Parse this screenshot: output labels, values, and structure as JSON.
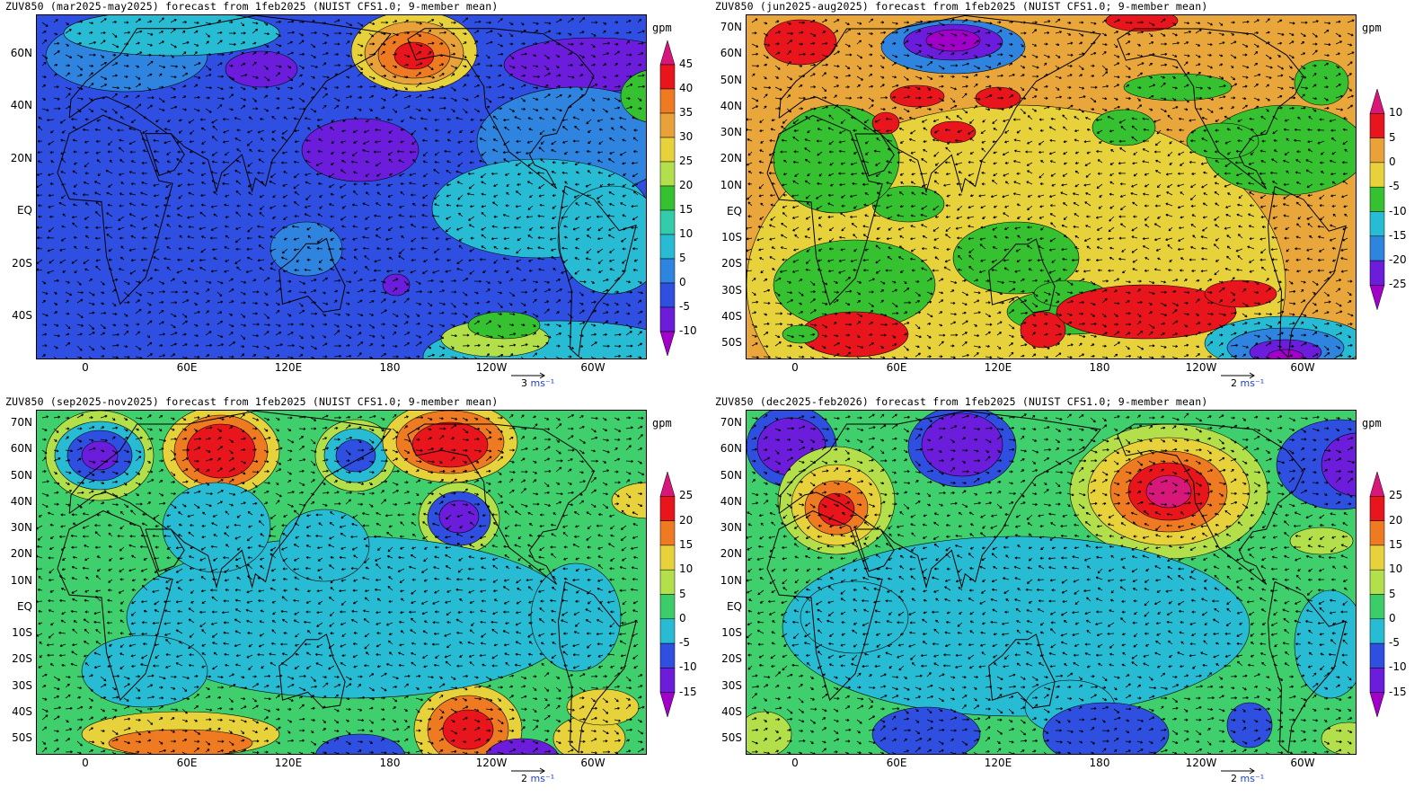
{
  "panels": [
    {
      "id": "mam",
      "title": "ZUV850 (mar2025-may2025) forecast from 1feb2025 (NUIST CFS1.0; 9-member mean)",
      "lat_labels": [
        "60N",
        "40N",
        "20N",
        "EQ",
        "20S",
        "40S"
      ],
      "lat_values": [
        60,
        40,
        20,
        0,
        -20,
        -40
      ],
      "lon_labels": [
        "0",
        "60E",
        "120E",
        "180",
        "120W",
        "60W"
      ],
      "unit": "gpm",
      "levels": [
        "45",
        "40",
        "35",
        "30",
        "25",
        "20",
        "15",
        "10",
        "5",
        "0",
        "-5",
        "-10"
      ],
      "colors": [
        "#d8177a",
        "#e8151c",
        "#ee7a22",
        "#e9a23a",
        "#e8d23c",
        "#b3e04a",
        "#36c230",
        "#33ccaa",
        "#27bcd4",
        "#2f84e0",
        "#2e4fe0",
        "#6b1ddb",
        "#a000c8"
      ],
      "background": "#2f4fe2",
      "ref_vector": "3",
      "ref_unit": "ms⁻¹"
    },
    {
      "id": "jja",
      "title": "ZUV850 (jun2025-aug2025) forecast from 1feb2025 (NUIST CFS1.0; 9-member mean)",
      "lat_labels": [
        "70N",
        "60N",
        "50N",
        "40N",
        "30N",
        "20N",
        "10N",
        "EQ",
        "10S",
        "20S",
        "30S",
        "40S",
        "50S"
      ],
      "lat_values": [
        70,
        60,
        50,
        40,
        30,
        20,
        10,
        0,
        -10,
        -20,
        -30,
        -40,
        -50
      ],
      "lon_labels": [
        "0",
        "60E",
        "120E",
        "180",
        "120W",
        "60W"
      ],
      "unit": "gpm",
      "levels": [
        "10",
        "5",
        "0",
        "-5",
        "-10",
        "-15",
        "-20",
        "-25"
      ],
      "colors": [
        "#d8177a",
        "#e8151c",
        "#e9a23a",
        "#e8d23c",
        "#36c230",
        "#27bcd4",
        "#2f84e0",
        "#6b1ddb",
        "#a000c8"
      ],
      "background": "#e9a63a",
      "ref_vector": "2",
      "ref_unit": "ms⁻¹"
    },
    {
      "id": "son",
      "title": "ZUV850 (sep2025-nov2025) forecast from 1feb2025 (NUIST CFS1.0; 9-member mean)",
      "lat_labels": [
        "70N",
        "60N",
        "50N",
        "40N",
        "30N",
        "20N",
        "10N",
        "EQ",
        "10S",
        "20S",
        "30S",
        "40S",
        "50S"
      ],
      "lat_values": [
        70,
        60,
        50,
        40,
        30,
        20,
        10,
        0,
        -10,
        -20,
        -30,
        -40,
        -50
      ],
      "lon_labels": [
        "0",
        "60E",
        "120E",
        "180",
        "120W",
        "60W"
      ],
      "unit": "gpm",
      "levels": [
        "25",
        "20",
        "15",
        "10",
        "5",
        "0",
        "-5",
        "-10",
        "-15"
      ],
      "colors": [
        "#d8177a",
        "#e8151c",
        "#ee7a22",
        "#e8d23c",
        "#b3e04a",
        "#3ccc6a",
        "#27bcd4",
        "#2f4fe0",
        "#6b1ddb",
        "#a000c8"
      ],
      "background": "#3fcf6c",
      "ref_vector": "2",
      "ref_unit": "ms⁻¹"
    },
    {
      "id": "djf",
      "title": "ZUV850 (dec2025-feb2026) forecast from 1feb2025 (NUIST CFS1.0; 9-member mean)",
      "lat_labels": [
        "70N",
        "60N",
        "50N",
        "40N",
        "30N",
        "20N",
        "10N",
        "EQ",
        "10S",
        "20S",
        "30S",
        "40S",
        "50S"
      ],
      "lat_values": [
        70,
        60,
        50,
        40,
        30,
        20,
        10,
        0,
        -10,
        -20,
        -30,
        -40,
        -50
      ],
      "lon_labels": [
        "0",
        "60E",
        "120E",
        "180",
        "120W",
        "60W"
      ],
      "unit": "gpm",
      "levels": [
        "25",
        "20",
        "15",
        "10",
        "5",
        "0",
        "-5",
        "-10",
        "-15"
      ],
      "colors": [
        "#d8177a",
        "#e8151c",
        "#ee7a22",
        "#e8d23c",
        "#b3e04a",
        "#3ccc6a",
        "#27bcd4",
        "#2f4fe0",
        "#6b1ddb",
        "#a000c8"
      ],
      "background": "#3fcf6c",
      "ref_vector": "2",
      "ref_unit": "ms⁻¹"
    }
  ]
}
